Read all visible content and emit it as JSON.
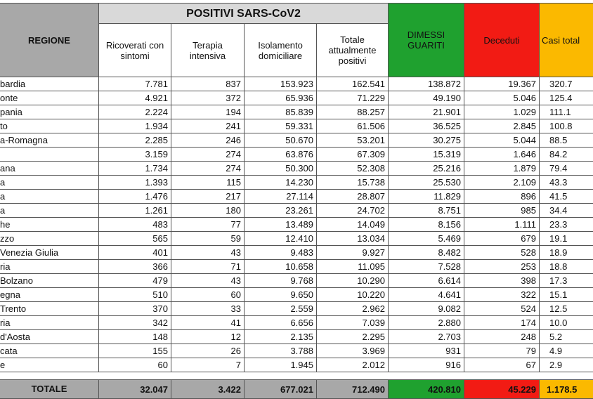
{
  "header": {
    "regione": "REGIONE",
    "group": "POSITIVI SARS-CoV2",
    "columns": [
      "Ricoverati con sintomi",
      "Terapia intensiva",
      "Isolamento domiciliare",
      "Totale attualmente positivi",
      "DIMESSI GUARITI",
      "Deceduti",
      "Casi total"
    ]
  },
  "rows": [
    [
      "bardia",
      "7.781",
      "837",
      "153.923",
      "162.541",
      "138.872",
      "19.367",
      "320.7"
    ],
    [
      "onte",
      "4.921",
      "372",
      "65.936",
      "71.229",
      "49.190",
      "5.046",
      "125.4"
    ],
    [
      "pania",
      "2.224",
      "194",
      "85.839",
      "88.257",
      "21.901",
      "1.029",
      "111.1"
    ],
    [
      "to",
      "1.934",
      "241",
      "59.331",
      "61.506",
      "36.525",
      "2.845",
      "100.8"
    ],
    [
      "a-Romagna",
      "2.285",
      "246",
      "50.670",
      "53.201",
      "30.275",
      "5.044",
      "88.5"
    ],
    [
      "",
      "3.159",
      "274",
      "63.876",
      "67.309",
      "15.319",
      "1.646",
      "84.2"
    ],
    [
      "ana",
      "1.734",
      "274",
      "50.300",
      "52.308",
      "25.216",
      "1.879",
      "79.4"
    ],
    [
      "a",
      "1.393",
      "115",
      "14.230",
      "15.738",
      "25.530",
      "2.109",
      "43.3"
    ],
    [
      "a",
      "1.476",
      "217",
      "27.114",
      "28.807",
      "11.829",
      "896",
      "41.5"
    ],
    [
      "a",
      "1.261",
      "180",
      "23.261",
      "24.702",
      "8.751",
      "985",
      "34.4"
    ],
    [
      "he",
      "483",
      "77",
      "13.489",
      "14.049",
      "8.156",
      "1.111",
      "23.3"
    ],
    [
      "zzo",
      "565",
      "59",
      "12.410",
      "13.034",
      "5.469",
      "679",
      "19.1"
    ],
    [
      "Venezia Giulia",
      "401",
      "43",
      "9.483",
      "9.927",
      "8.482",
      "528",
      "18.9"
    ],
    [
      "ria",
      "366",
      "71",
      "10.658",
      "11.095",
      "7.528",
      "253",
      "18.8"
    ],
    [
      "Bolzano",
      "479",
      "43",
      "9.768",
      "10.290",
      "6.614",
      "398",
      "17.3"
    ],
    [
      "egna",
      "510",
      "60",
      "9.650",
      "10.220",
      "4.641",
      "322",
      "15.1"
    ],
    [
      "Trento",
      "370",
      "33",
      "2.559",
      "2.962",
      "9.082",
      "524",
      "12.5"
    ],
    [
      "ria",
      "342",
      "41",
      "6.656",
      "7.039",
      "2.880",
      "174",
      "10.0"
    ],
    [
      "d'Aosta",
      "148",
      "12",
      "2.135",
      "2.295",
      "2.703",
      "248",
      "5.2"
    ],
    [
      "cata",
      "155",
      "26",
      "3.788",
      "3.969",
      "931",
      "79",
      "4.9"
    ],
    [
      "e",
      "60",
      "7",
      "1.945",
      "2.012",
      "916",
      "67",
      "2.9"
    ]
  ],
  "totals": [
    "TOTALE",
    "32.047",
    "3.422",
    "677.021",
    "712.490",
    "420.810",
    "45.229",
    "1.178.5"
  ],
  "colors": {
    "green": "#1fa12f",
    "red": "#f21b14",
    "orange": "#fbb900",
    "grey": "#a8a8a8"
  }
}
